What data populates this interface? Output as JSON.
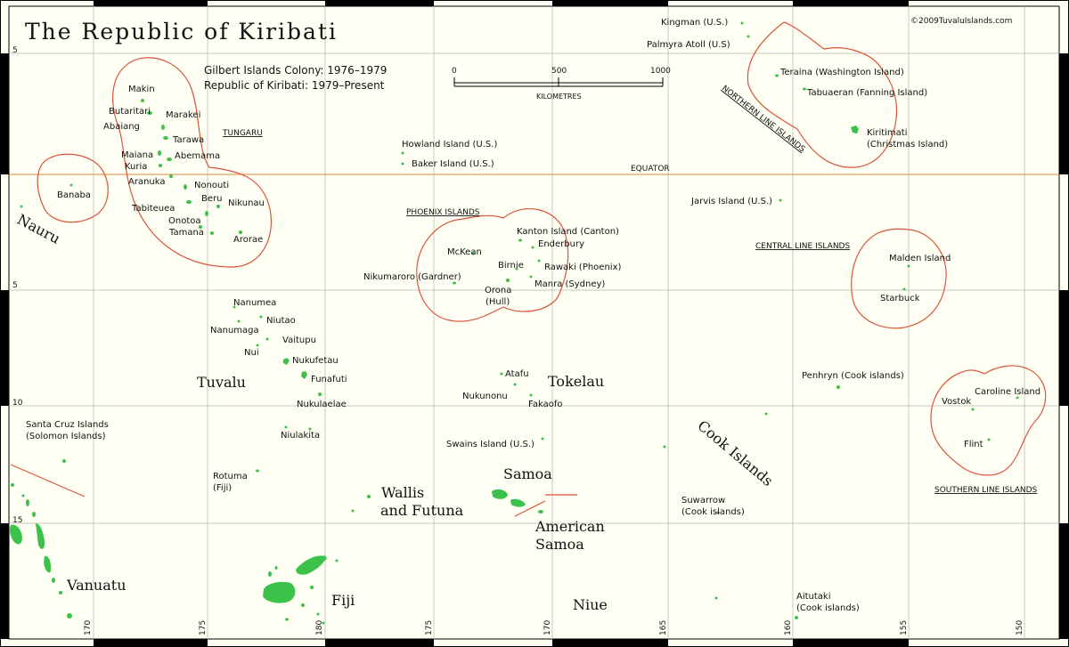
{
  "title": "The Republic of Kiribati",
  "copyright": "©2009TuvaluIslands.com",
  "legend": {
    "line1": "Gilbert Islands Colony: 1976–1979",
    "line2": "Republic of Kiribati: 1979–Present"
  },
  "scale_bar": {
    "ticks": [
      "0",
      "500",
      "1000"
    ],
    "unit": "KILOMETRES"
  },
  "equator_label": "EQUATOR",
  "lat_labels": {
    "n5": "5",
    "s5": "5",
    "s10": "10",
    "s15": "15"
  },
  "lon_labels": {
    "l170a": "170",
    "l175a": "175",
    "l180": "180",
    "l175b": "175",
    "l170b": "170",
    "l165": "165",
    "l160": "160",
    "l155": "155",
    "l150": "150"
  },
  "regions": {
    "tungaru": "TUNGARU",
    "phoenix": "PHOENIX ISLANDS",
    "northern_line": "NORTHERN LINE ISLANDS",
    "central_line": "CENTRAL LINE ISLANDS",
    "southern_line": "SOUTHERN LINE ISLANDS"
  },
  "countries": {
    "nauru": "Nauru",
    "tuvalu": "Tuvalu",
    "tokelau": "Tokelau",
    "cook_islands": "Cook Islands",
    "wallis_1": "Wallis",
    "wallis_2": "and Futuna",
    "samoa": "Samoa",
    "american_samoa_1": "American",
    "american_samoa_2": "Samoa",
    "vanuatu": "Vanuatu",
    "fiji": "Fiji",
    "niue": "Niue"
  },
  "islands": {
    "makin": "Makin",
    "butaritari": "Butaritari",
    "marakei": "Marakei",
    "abaiang": "Abaiang",
    "tarawa": "Tarawa",
    "maiana": "Maiana",
    "abemama": "Abemama",
    "kuria": "Kuria",
    "aranuka": "Aranuka",
    "nonouti": "Nonouti",
    "tabiteuea": "Tabiteuea",
    "beru": "Beru",
    "nikunau": "Nikunau",
    "onotoa": "Onotoa",
    "tamana": "Tamana",
    "arorae": "Arorae",
    "banaba": "Banaba",
    "howland": "Howland Island (U.S.)",
    "baker": "Baker Island (U.S.)",
    "kingman": "Kingman (U.S.)",
    "palmyra": "Palmyra Atoll (U.S)",
    "teraina": "Teraina (Washington Island)",
    "tabuaeran": "Tabuaeran (Fanning Island)",
    "kiritimati_1": "Kiritimati",
    "kiritimati_2": "(Christmas Island)",
    "jarvis": "Jarvis Island (U.S.)",
    "kanton": "Kanton Island (Canton)",
    "enderbury": "Enderbury",
    "mckean": "McKean",
    "birnie": "Birnie",
    "rawaki": "Rawaki (Phoenix)",
    "nikumaroro": "Nikumaroro (Gardner)",
    "orona_1": "Orona",
    "orona_2": "(Hull)",
    "manra": "Manra (Sydney)",
    "malden": "Malden Island",
    "starbuck": "Starbuck",
    "nanumea": "Nanumea",
    "niutao": "Niutao",
    "nanumaga": "Nanumaga",
    "vaitupu": "Vaitupu",
    "nui": "Nui",
    "nukufetau": "Nukufetau",
    "funafuti": "Funafuti",
    "nukulaelae": "Nukulaelae",
    "niulakita": "Niulakita",
    "santa_cruz_1": "Santa Cruz Islands",
    "santa_cruz_2": "(Solomon Islands)",
    "rotuma_1": "Rotuma",
    "rotuma_2": "(Fiji)",
    "atafu": "Atafu",
    "nukunonu": "Nukunonu",
    "fakaofo": "Fakaofo",
    "swains": "Swains Island (U.S.)",
    "penrhyn": "Penhryn (Cook islands)",
    "vostok": "Vostok",
    "caroline": "Caroline Island",
    "flint": "Flint",
    "suwarrow_1": "Suwarrow",
    "suwarrow_2": "(Cook islands)",
    "aitutaki_1": "Aitutaki",
    "aitutaki_2": "(Cook islands)"
  },
  "colors": {
    "background": "#fffff4",
    "land": "#3cc24a",
    "boundary": "#d9553a",
    "equator": "#d98a3a",
    "grid": "#b5b5b5",
    "frame": "#000000"
  }
}
